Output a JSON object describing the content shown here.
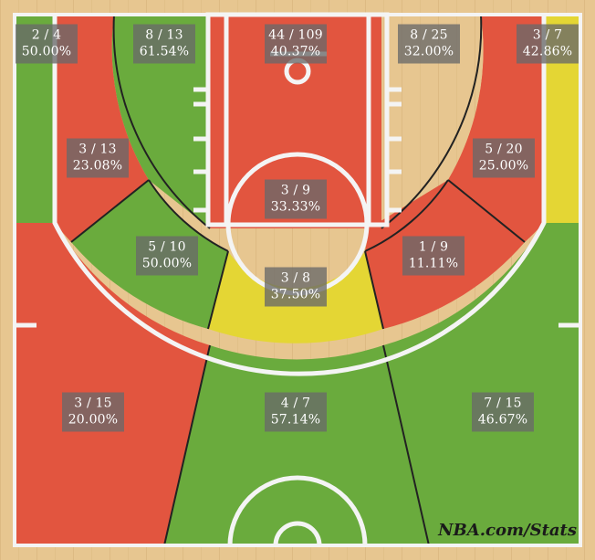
{
  "chart_data": {
    "type": "shot-chart",
    "colors": {
      "above": "#6aab3d",
      "average": "#e4d634",
      "below": "#e2553f",
      "court_floor": "#e6c48e",
      "court_lines": "#f4f4f4",
      "zone_borders": "#222222"
    },
    "zones": [
      {
        "id": "left-corner-three",
        "made": 2,
        "attempts": 4,
        "label": "2 / 4",
        "pct_label": "50.00%",
        "rating": "above"
      },
      {
        "id": "left-baseline-midrange",
        "made": 8,
        "attempts": 13,
        "label": "8 / 13",
        "pct_label": "61.54%",
        "rating": "above"
      },
      {
        "id": "restricted-area",
        "made": 44,
        "attempts": 109,
        "label": "44 / 109",
        "pct_label": "40.37%",
        "rating": "below"
      },
      {
        "id": "right-baseline-midrange",
        "made": 8,
        "attempts": 25,
        "label": "8 / 25",
        "pct_label": "32.00%",
        "rating": "below"
      },
      {
        "id": "right-corner-three",
        "made": 3,
        "attempts": 7,
        "label": "3 / 7",
        "pct_label": "42.86%",
        "rating": "average"
      },
      {
        "id": "left-short-midrange",
        "made": 3,
        "attempts": 13,
        "label": "3 / 13",
        "pct_label": "23.08%",
        "rating": "below"
      },
      {
        "id": "right-short-midrange",
        "made": 5,
        "attempts": 20,
        "label": "5 / 20",
        "pct_label": "25.00%",
        "rating": "below"
      },
      {
        "id": "paint-non-ra",
        "made": 3,
        "attempts": 9,
        "label": "3 / 9",
        "pct_label": "33.33%",
        "rating": "below"
      },
      {
        "id": "left-wing-midrange",
        "made": 5,
        "attempts": 10,
        "label": "5 / 10",
        "pct_label": "50.00%",
        "rating": "above"
      },
      {
        "id": "right-wing-midrange",
        "made": 1,
        "attempts": 9,
        "label": "1 / 9",
        "pct_label": "11.11%",
        "rating": "below"
      },
      {
        "id": "top-key-midrange",
        "made": 3,
        "attempts": 8,
        "label": "3 / 8",
        "pct_label": "37.50%",
        "rating": "average"
      },
      {
        "id": "left-wing-three",
        "made": 3,
        "attempts": 15,
        "label": "3 / 15",
        "pct_label": "20.00%",
        "rating": "below"
      },
      {
        "id": "top-key-three",
        "made": 4,
        "attempts": 7,
        "label": "4 / 7",
        "pct_label": "57.14%",
        "rating": "above"
      },
      {
        "id": "right-wing-three",
        "made": 7,
        "attempts": 15,
        "label": "7 / 15",
        "pct_label": "46.67%",
        "rating": "above"
      }
    ]
  },
  "watermark": "NBA.com/Stats"
}
